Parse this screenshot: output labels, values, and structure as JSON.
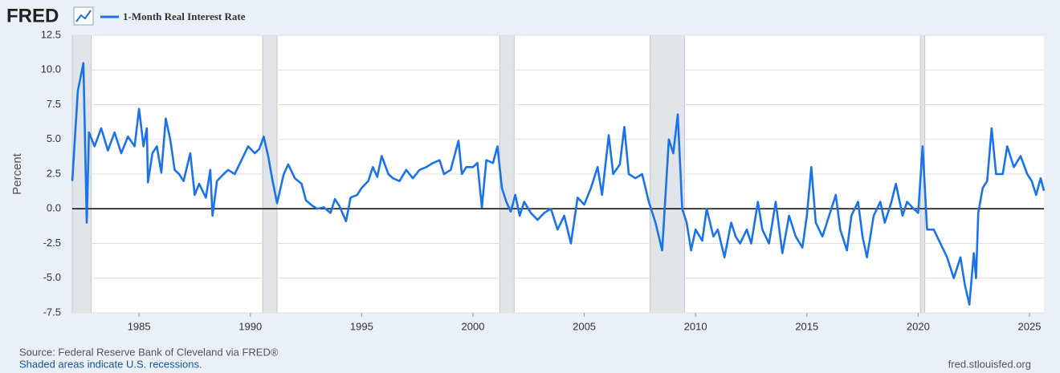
{
  "chart_data": {
    "type": "line",
    "brand": "FRED",
    "ylabel": "Percent",
    "source": "Source: Federal Reserve Bank of Cleveland via FRED®",
    "note": "Shaded areas indicate U.S. recessions.",
    "site": "fred.stlouisfed.org",
    "xlim": [
      1982,
      2025.65
    ],
    "xticks": [
      1985,
      1990,
      1995,
      2000,
      2005,
      2010,
      2015,
      2020,
      2025
    ],
    "ylim": [
      -7.5,
      12.5
    ],
    "yticks": [
      {
        "value": 12.5,
        "label": "12.5"
      },
      {
        "value": 10,
        "label": "10.0"
      },
      7.5,
      {
        "value": 5,
        "label": "5.0"
      },
      2.5,
      {
        "value": 0,
        "label": "0.0"
      },
      -2.5,
      {
        "value": -5,
        "label": "-5.0"
      },
      -7.5
    ],
    "grid": true,
    "recessions": [
      [
        1982.0,
        1982.85
      ],
      [
        1990.55,
        1991.2
      ],
      [
        2001.2,
        2001.85
      ],
      [
        2007.95,
        2009.5
      ],
      [
        2020.1,
        2020.3
      ]
    ],
    "recession_color": "#e1e5ea",
    "x": [
      1982.0,
      1982.25,
      1982.5,
      1982.65,
      1982.75,
      1983.0,
      1983.3,
      1983.6,
      1983.9,
      1984.2,
      1984.5,
      1984.8,
      1985.0,
      1985.2,
      1985.35,
      1985.4,
      1985.6,
      1985.8,
      1986.0,
      1986.2,
      1986.4,
      1986.6,
      1986.8,
      1987.0,
      1987.3,
      1987.5,
      1987.7,
      1988.0,
      1988.2,
      1988.3,
      1988.5,
      1988.8,
      1989.0,
      1989.3,
      1989.6,
      1989.9,
      1990.2,
      1990.4,
      1990.6,
      1990.8,
      1991.0,
      1991.2,
      1991.5,
      1991.7,
      1992.0,
      1992.3,
      1992.5,
      1992.8,
      1993.0,
      1993.3,
      1993.6,
      1993.8,
      1994.0,
      1994.3,
      1994.5,
      1994.8,
      1995.0,
      1995.3,
      1995.5,
      1995.7,
      1995.9,
      1996.2,
      1996.4,
      1996.7,
      1997.0,
      1997.3,
      1997.6,
      1997.9,
      1998.2,
      1998.5,
      1998.7,
      1999.0,
      1999.35,
      1999.5,
      1999.7,
      2000.0,
      2000.2,
      2000.4,
      2000.6,
      2000.9,
      2001.1,
      2001.3,
      2001.5,
      2001.7,
      2001.9,
      2002.1,
      2002.3,
      2002.6,
      2002.9,
      2003.2,
      2003.5,
      2003.8,
      2004.1,
      2004.4,
      2004.7,
      2005.0,
      2005.3,
      2005.6,
      2005.8,
      2006.1,
      2006.3,
      2006.6,
      2006.8,
      2007.0,
      2007.3,
      2007.6,
      2007.9,
      2008.2,
      2008.5,
      2008.8,
      2009.0,
      2009.2,
      2009.4,
      2009.6,
      2009.8,
      2010.0,
      2010.3,
      2010.5,
      2010.8,
      2011.0,
      2011.3,
      2011.6,
      2011.8,
      2012.0,
      2012.3,
      2012.5,
      2012.8,
      2013.0,
      2013.3,
      2013.6,
      2013.9,
      2014.2,
      2014.5,
      2014.8,
      2015.0,
      2015.2,
      2015.4,
      2015.7,
      2016.0,
      2016.3,
      2016.5,
      2016.8,
      2017.0,
      2017.3,
      2017.5,
      2017.7,
      2018.0,
      2018.3,
      2018.5,
      2018.8,
      2019.0,
      2019.3,
      2019.5,
      2019.8,
      2020.0,
      2020.2,
      2020.4,
      2020.7,
      2021.0,
      2021.3,
      2021.6,
      2021.9,
      2022.1,
      2022.3,
      2022.5,
      2022.6,
      2022.7,
      2022.9,
      2023.1,
      2023.3,
      2023.5,
      2023.8,
      2024.0,
      2024.3,
      2024.6,
      2024.9,
      2025.1,
      2025.3,
      2025.5,
      2025.65
    ],
    "series": [
      {
        "name": "1-Month Real Interest Rate",
        "color": "#1a73e8",
        "values": [
          2,
          8.5,
          10.5,
          -1,
          5.5,
          4.5,
          5.8,
          4.2,
          5.5,
          4,
          5.2,
          4.5,
          7.2,
          4.5,
          5.8,
          1.9,
          4,
          4.5,
          2.6,
          6.5,
          5,
          2.8,
          2.5,
          2,
          4,
          1,
          1.8,
          0.8,
          2.8,
          -0.5,
          2,
          2.5,
          2.8,
          2.5,
          3.5,
          4.5,
          4,
          4.3,
          5.2,
          3.8,
          2,
          0.4,
          2.5,
          3.2,
          2.2,
          1.8,
          0.6,
          0.2,
          0,
          0.1,
          -0.3,
          0.7,
          0.2,
          -0.9,
          0.8,
          1,
          1.5,
          2,
          3,
          2.3,
          3.8,
          2.5,
          2.2,
          2,
          2.8,
          2.2,
          2.8,
          3,
          3.3,
          3.5,
          2.5,
          2.8,
          4.9,
          2.5,
          3,
          3,
          3.3,
          0.1,
          3.5,
          3.3,
          4.5,
          1.5,
          0.5,
          -0.2,
          1,
          -0.5,
          0.5,
          -0.3,
          -0.8,
          -0.3,
          0,
          -1.5,
          -0.5,
          -2.5,
          0.8,
          0.3,
          1.5,
          3,
          1,
          5.3,
          2.5,
          3.2,
          5.9,
          2.5,
          2.2,
          2.5,
          0.5,
          -1,
          -3,
          5,
          4,
          6.8,
          0,
          -1,
          -3,
          -1.5,
          -2.3,
          0,
          -2,
          -1.5,
          -3.5,
          -1,
          -2,
          -2.5,
          -1.5,
          -2.5,
          0.5,
          -1.5,
          -2.5,
          0.5,
          -3.2,
          -0.5,
          -2,
          -2.8,
          -0.5,
          3,
          -1,
          -2,
          -0.5,
          1,
          -1.5,
          -3,
          -0.5,
          0.5,
          -2,
          -3.5,
          -0.5,
          0.5,
          -1,
          0.5,
          1.8,
          -0.5,
          0.5,
          0,
          -0.3,
          4.5,
          -1.5,
          -1.5,
          -2.5,
          -3.5,
          -5,
          -3.5,
          -5.5,
          -6.9,
          -3.2,
          -5,
          -0.3,
          1.5,
          2,
          5.8,
          2.5,
          2.5,
          4.5,
          3,
          3.8,
          2.5,
          2,
          1,
          2.2,
          1.3
        ]
      }
    ]
  }
}
